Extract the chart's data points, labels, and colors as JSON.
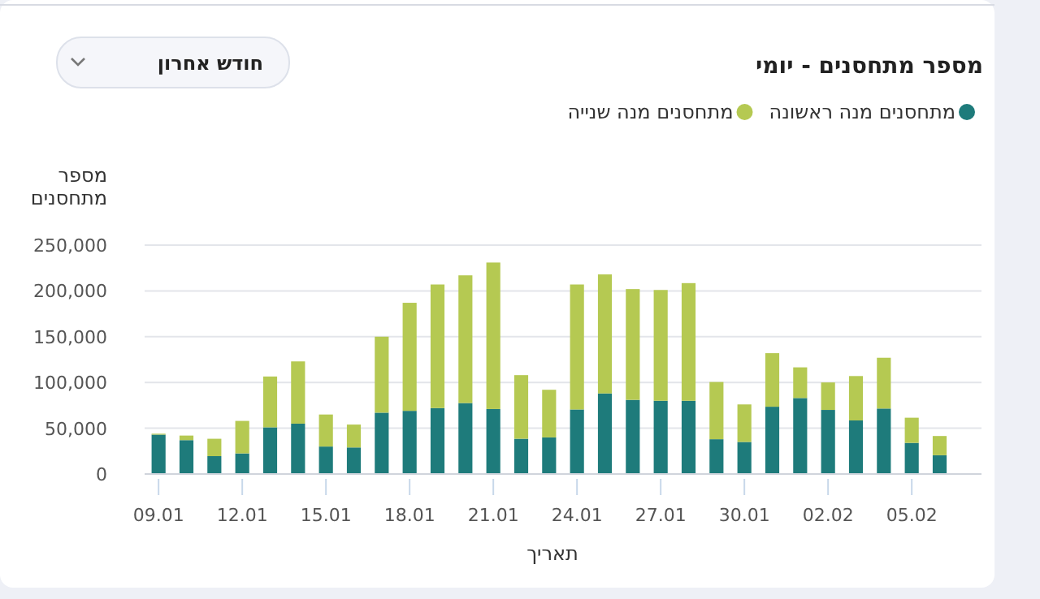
{
  "chart_data": {
    "type": "bar",
    "stacked": true,
    "title": "מספר מתחסנים - יומי",
    "xlabel": "תאריך",
    "ylabel": "מספר מתחסנים",
    "annotations": [
      "חודש אחרון"
    ],
    "categories": [
      "09.01",
      null,
      null,
      "12.01",
      null,
      null,
      "15.01",
      null,
      null,
      "18.01",
      null,
      null,
      "21.01",
      null,
      null,
      "24.01",
      null,
      null,
      "27.01",
      null,
      null,
      "30.01",
      null,
      null,
      "02.02",
      null,
      null,
      "05.02",
      null,
      null
    ],
    "series": [
      {
        "name": "מתחסנים מנה ראשונה",
        "color": "#1e7b7b",
        "values": [
          43000,
          37000,
          19500,
          22500,
          51000,
          55000,
          30000,
          29000,
          67000,
          69000,
          72000,
          77500,
          71000,
          38500,
          40000,
          70500,
          88000,
          81000,
          80000,
          80000,
          38000,
          35000,
          73500,
          83000,
          70000,
          58500,
          71500,
          34000,
          20500,
          null
        ]
      },
      {
        "name": "מתחסנים מנה שנייה",
        "color": "#b5c952",
        "values": [
          1000,
          5000,
          19000,
          35500,
          55500,
          68000,
          35000,
          25000,
          83000,
          118000,
          135000,
          139500,
          160000,
          69500,
          52000,
          136500,
          130000,
          121000,
          121000,
          128500,
          62500,
          41000,
          58500,
          33500,
          30000,
          48500,
          55500,
          27500,
          21000,
          null
        ]
      }
    ],
    "ylim": [
      0,
      250000
    ],
    "yticks": [
      {
        "value": 0,
        "label": "0"
      },
      {
        "value": 50000,
        "label": "50,000"
      },
      {
        "value": 100000,
        "label": "100,000"
      },
      {
        "value": 150000,
        "label": "150,000"
      },
      {
        "value": 200000,
        "label": "200,000"
      },
      {
        "value": 250000,
        "label": "250,000"
      }
    ],
    "grid": "y",
    "legend": "top right"
  }
}
